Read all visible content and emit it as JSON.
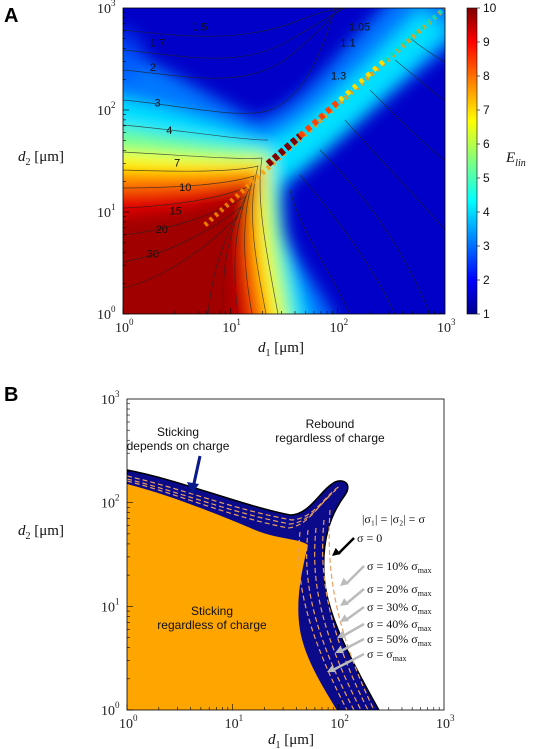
{
  "chart_data": [
    {
      "panel": "A",
      "type": "heatmap",
      "scale": "log-log",
      "xlim": [
        1,
        1000
      ],
      "ylim": [
        1,
        1000
      ],
      "x_ticks": [
        {
          "base": "10",
          "exp": "0"
        },
        {
          "base": "10",
          "exp": "1"
        },
        {
          "base": "10",
          "exp": "2"
        },
        {
          "base": "10",
          "exp": "3"
        }
      ],
      "y_ticks": [
        {
          "base": "10",
          "exp": "0"
        },
        {
          "base": "10",
          "exp": "1"
        },
        {
          "base": "10",
          "exp": "2"
        },
        {
          "base": "10",
          "exp": "3"
        }
      ],
      "xlabel": {
        "main": "d",
        "sub": "1",
        "unit": " [μm]"
      },
      "ylabel": {
        "main": "d",
        "sub": "2",
        "unit": " [μm]"
      },
      "colorbar": {
        "label_main": "E",
        "label_sub": "lin",
        "min": 1,
        "max": 10,
        "ticks": [
          "1",
          "2",
          "3",
          "4",
          "5",
          "6",
          "7",
          "8",
          "9",
          "10"
        ]
      },
      "colormap": [
        "#00008f",
        "#0000ff",
        "#0080ff",
        "#00ffff",
        "#80ff80",
        "#ffff00",
        "#ff8000",
        "#ff0000",
        "#800000"
      ],
      "contour_labels": [
        {
          "text": "1.5",
          "x": 5.2,
          "y": 600
        },
        {
          "text": "1.7",
          "x": 2.1,
          "y": 420
        },
        {
          "text": "2",
          "x": 1.9,
          "y": 240
        },
        {
          "text": "3",
          "x": 2.1,
          "y": 108
        },
        {
          "text": "4",
          "x": 2.7,
          "y": 58
        },
        {
          "text": "7",
          "x": 3.2,
          "y": 28
        },
        {
          "text": "10",
          "x": 3.8,
          "y": 16
        },
        {
          "text": "15",
          "x": 3.1,
          "y": 9.5
        },
        {
          "text": "20",
          "x": 2.3,
          "y": 6.2
        },
        {
          "text": "30",
          "x": 1.9,
          "y": 3.6
        },
        {
          "text": "1.05",
          "x": 160,
          "y": 600
        },
        {
          "text": "1.1",
          "x": 125,
          "y": 420
        },
        {
          "text": "1.3",
          "x": 102,
          "y": 200
        }
      ]
    },
    {
      "panel": "B",
      "type": "area",
      "scale": "log-log",
      "xlim": [
        1,
        1000
      ],
      "ylim": [
        1,
        1000
      ],
      "x_ticks": [
        {
          "base": "10",
          "exp": "0"
        },
        {
          "base": "10",
          "exp": "1"
        },
        {
          "base": "10",
          "exp": "2"
        },
        {
          "base": "10",
          "exp": "3"
        }
      ],
      "y_ticks": [
        {
          "base": "10",
          "exp": "0"
        },
        {
          "base": "10",
          "exp": "1"
        },
        {
          "base": "10",
          "exp": "2"
        },
        {
          "base": "10",
          "exp": "3"
        }
      ],
      "xlabel": {
        "main": "d",
        "sub": "1",
        "unit": " [μm]"
      },
      "ylabel": {
        "main": "d",
        "sub": "2",
        "unit": " [μm]"
      },
      "colors": {
        "sticking": "#ffa500",
        "charge_dependent": "#0a0a8a",
        "rebound": "#ffffff",
        "dash": "#e8a060"
      },
      "regions": {
        "rebound": [
          "Rebound",
          "regardless of charge"
        ],
        "sticking_depends": [
          "Sticking",
          "depends on charge"
        ],
        "sticking": [
          "Sticking",
          "regardless of charge"
        ]
      },
      "sigma_relation": "|σ₁| = |σ₂| = σ",
      "sigma_labels": [
        "σ = 0",
        "σ = 10% σmax",
        "σ = 20% σmax",
        "σ = 30% σmax",
        "σ = 40% σmax",
        "σ = 50% σmax",
        "σ = σmax"
      ],
      "sigma_label_parts": [
        {
          "main": "σ = 0",
          "sub": ""
        },
        {
          "main": "σ = 10% σ",
          "sub": "max"
        },
        {
          "main": "σ = 20% σ",
          "sub": "max"
        },
        {
          "main": "σ = 30% σ",
          "sub": "max"
        },
        {
          "main": "σ = 40% σ",
          "sub": "max"
        },
        {
          "main": "σ = 50% σ",
          "sub": "max"
        },
        {
          "main": "σ = σ",
          "sub": "max"
        }
      ]
    }
  ]
}
